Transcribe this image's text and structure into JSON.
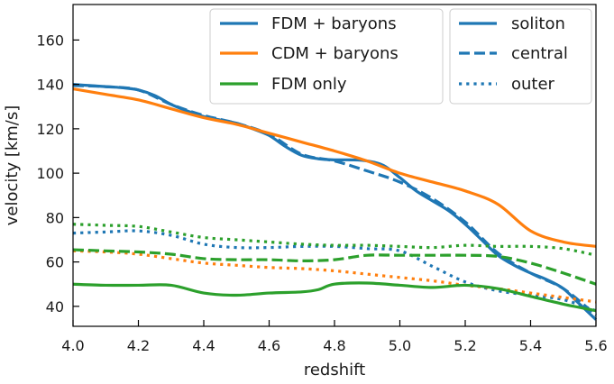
{
  "chart_data": {
    "type": "line",
    "title": "",
    "xlabel": "redshift",
    "ylabel": "velocity [km/s]",
    "xlim": [
      4.0,
      5.6
    ],
    "ylim": [
      31,
      176
    ],
    "xticks": [
      4.0,
      4.2,
      4.4,
      4.6,
      4.8,
      5.0,
      5.2,
      5.4,
      5.6
    ],
    "xtick_labels": [
      "4.0",
      "4.2",
      "4.4",
      "4.6",
      "4.8",
      "5.0",
      "5.2",
      "5.4",
      "5.6"
    ],
    "yticks": [
      40,
      60,
      80,
      100,
      120,
      140,
      160
    ],
    "ytick_labels": [
      "40",
      "60",
      "80",
      "100",
      "120",
      "140",
      "160"
    ],
    "grid": false,
    "legend_models": {
      "position": "top-center",
      "entries": [
        {
          "label": "FDM + baryons",
          "color": "#1f77b4",
          "style": "solid"
        },
        {
          "label": "CDM + baryons",
          "color": "#ff7f0e",
          "style": "solid"
        },
        {
          "label": "FDM only",
          "color": "#2ca02c",
          "style": "solid"
        }
      ]
    },
    "legend_styles": {
      "position": "top-right",
      "entries": [
        {
          "label": "soliton",
          "color": "#1f77b4",
          "style": "solid"
        },
        {
          "label": "central",
          "color": "#1f77b4",
          "style": "dashed"
        },
        {
          "label": "outer",
          "color": "#1f77b4",
          "style": "dotted"
        }
      ]
    },
    "series": [
      {
        "name": "FDM + baryons soliton",
        "color": "#1f77b4",
        "style": "solid",
        "x": [
          4.0,
          4.05,
          4.1,
          4.15,
          4.2,
          4.25,
          4.3,
          4.35,
          4.4,
          4.45,
          4.5,
          4.55,
          4.6,
          4.65,
          4.7,
          4.75,
          4.8,
          4.85,
          4.9,
          4.95,
          5.0,
          5.05,
          5.1,
          5.15,
          5.2,
          5.25,
          5.3,
          5.35,
          5.4,
          5.45,
          5.5,
          5.55,
          5.6
        ],
        "y": [
          140,
          139.5,
          139,
          138.5,
          137.5,
          135,
          131,
          128,
          125.5,
          124,
          122.5,
          120,
          117,
          112,
          108,
          106.5,
          106,
          106,
          105.5,
          103.5,
          98,
          92,
          87.5,
          83,
          77,
          70,
          63,
          58.5,
          55,
          52,
          48,
          41,
          34
        ]
      },
      {
        "name": "FDM + baryons central",
        "color": "#1f77b4",
        "style": "dashed",
        "x": [
          4.0,
          4.1,
          4.2,
          4.3,
          4.4,
          4.5,
          4.6,
          4.7,
          4.8,
          4.9,
          5.0,
          5.1,
          5.2,
          5.3,
          5.4,
          5.5,
          5.6
        ],
        "y": [
          139.5,
          139,
          137.5,
          131,
          126,
          122.5,
          117.5,
          108.5,
          105.5,
          101,
          96,
          88.5,
          78,
          64,
          55,
          48,
          36
        ]
      },
      {
        "name": "FDM + baryons outer",
        "color": "#1f77b4",
        "style": "dotted",
        "x": [
          4.0,
          4.1,
          4.2,
          4.3,
          4.4,
          4.5,
          4.6,
          4.7,
          4.8,
          4.9,
          5.0,
          5.1,
          5.2,
          5.3,
          5.4,
          5.5,
          5.6
        ],
        "y": [
          73,
          73.5,
          74,
          72,
          68,
          66.5,
          66.5,
          67,
          67,
          66,
          65,
          58,
          51,
          47,
          45,
          43,
          38
        ]
      },
      {
        "name": "CDM + baryons soliton",
        "color": "#ff7f0e",
        "style": "solid",
        "x": [
          4.0,
          4.1,
          4.2,
          4.3,
          4.4,
          4.5,
          4.6,
          4.7,
          4.8,
          4.9,
          5.0,
          5.1,
          5.2,
          5.3,
          5.4,
          5.5,
          5.6
        ],
        "y": [
          138,
          135.5,
          133,
          129,
          125,
          122,
          118,
          114,
          110,
          105.5,
          100,
          96,
          92,
          86,
          74,
          69,
          67
        ]
      },
      {
        "name": "CDM + baryons outer",
        "color": "#ff7f0e",
        "style": "dotted",
        "x": [
          4.0,
          4.1,
          4.2,
          4.3,
          4.4,
          4.5,
          4.6,
          4.7,
          4.8,
          4.9,
          5.0,
          5.1,
          5.2,
          5.3,
          5.4,
          5.5,
          5.6
        ],
        "y": [
          65,
          64.5,
          63.5,
          61.5,
          59.5,
          58.5,
          57.5,
          57,
          56,
          54.5,
          53,
          51.5,
          49.5,
          48,
          46,
          44,
          42
        ]
      },
      {
        "name": "FDM only soliton",
        "color": "#2ca02c",
        "style": "solid",
        "x": [
          4.0,
          4.1,
          4.2,
          4.3,
          4.4,
          4.5,
          4.6,
          4.7,
          4.75,
          4.8,
          4.9,
          5.0,
          5.1,
          5.2,
          5.3,
          5.4,
          5.5,
          5.6
        ],
        "y": [
          50,
          49.5,
          49.5,
          49.5,
          46,
          45,
          46,
          46.5,
          47.5,
          50,
          50.5,
          49.5,
          48.5,
          49.5,
          48,
          44.5,
          41,
          38
        ]
      },
      {
        "name": "FDM only central",
        "color": "#2ca02c",
        "style": "dashed",
        "x": [
          4.0,
          4.1,
          4.2,
          4.3,
          4.4,
          4.5,
          4.6,
          4.7,
          4.8,
          4.9,
          5.0,
          5.1,
          5.2,
          5.3,
          5.4,
          5.5,
          5.6
        ],
        "y": [
          65.5,
          65,
          64.5,
          63.5,
          61.5,
          61,
          61,
          60.5,
          61,
          63,
          63,
          63,
          63,
          62.5,
          59.5,
          55,
          50
        ]
      },
      {
        "name": "FDM only outer",
        "color": "#2ca02c",
        "style": "dotted",
        "x": [
          4.0,
          4.1,
          4.2,
          4.3,
          4.4,
          4.5,
          4.6,
          4.7,
          4.8,
          4.9,
          5.0,
          5.1,
          5.2,
          5.3,
          5.4,
          5.5,
          5.6
        ],
        "y": [
          77,
          76.5,
          76,
          73.5,
          71,
          70,
          69,
          68,
          67.5,
          67.5,
          67,
          66.5,
          67.5,
          67,
          67,
          66,
          63
        ]
      }
    ]
  }
}
